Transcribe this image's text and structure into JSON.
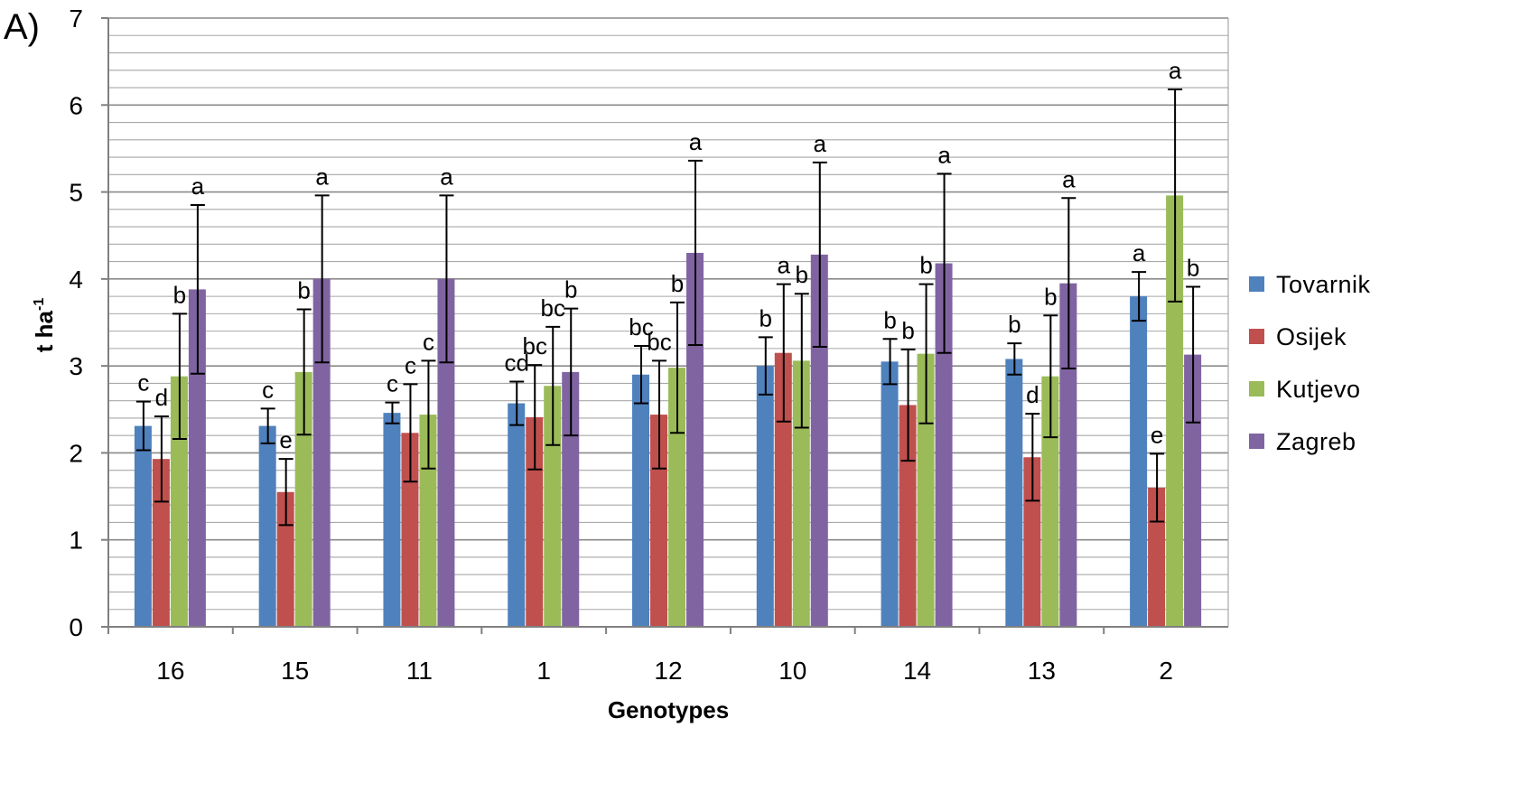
{
  "panel_label": "A)",
  "chart_data": {
    "type": "bar",
    "title": "",
    "xlabel": "Genotypes",
    "ylabel": "t ha",
    "ylabel_superscript": "-1",
    "ylim": [
      0,
      7
    ],
    "yticks": [
      0,
      1,
      2,
      3,
      4,
      5,
      6,
      7
    ],
    "grid": "horizontal minor lines every 0.2",
    "legend_position": "right",
    "categories": [
      "16",
      "15",
      "11",
      "1",
      "12",
      "10",
      "14",
      "13",
      "2"
    ],
    "series": [
      {
        "name": "Tovarnik",
        "color": "#4f81bd",
        "values": [
          2.31,
          2.31,
          2.46,
          2.57,
          2.9,
          3.0,
          3.05,
          3.08,
          3.8
        ],
        "errors": [
          0.28,
          0.2,
          0.12,
          0.25,
          0.33,
          0.33,
          0.26,
          0.18,
          0.28
        ],
        "labels": [
          "c",
          "c",
          "c",
          "cd",
          "bc",
          "b",
          "b",
          "b",
          "a"
        ]
      },
      {
        "name": "Osijek",
        "color": "#c0504d",
        "values": [
          1.93,
          1.55,
          2.23,
          2.41,
          2.44,
          3.15,
          2.55,
          1.95,
          1.6
        ],
        "errors": [
          0.49,
          0.38,
          0.56,
          0.6,
          0.62,
          0.79,
          0.64,
          0.5,
          0.39
        ],
        "labels": [
          "d",
          "e",
          "c",
          "bc",
          "bc",
          "a",
          "b",
          "d",
          "e"
        ]
      },
      {
        "name": "Kutjevo",
        "color": "#9bbb59",
        "values": [
          2.88,
          2.93,
          2.44,
          2.77,
          2.98,
          3.06,
          3.14,
          2.88,
          4.96
        ],
        "errors": [
          0.72,
          0.72,
          0.62,
          0.68,
          0.75,
          0.77,
          0.8,
          0.7,
          1.22
        ],
        "labels": [
          "b",
          "b",
          "c",
          "bc",
          "b",
          "b",
          "b",
          "b",
          "a"
        ]
      },
      {
        "name": "Zagreb",
        "color": "#8064a2",
        "values": [
          3.88,
          4.0,
          4.0,
          2.93,
          4.3,
          4.28,
          4.18,
          3.95,
          3.13
        ],
        "errors": [
          0.97,
          0.96,
          0.96,
          0.73,
          1.06,
          1.06,
          1.03,
          0.98,
          0.78
        ],
        "labels": [
          "a",
          "a",
          "a",
          "b",
          "a",
          "a",
          "a",
          "a",
          "b"
        ]
      }
    ]
  }
}
